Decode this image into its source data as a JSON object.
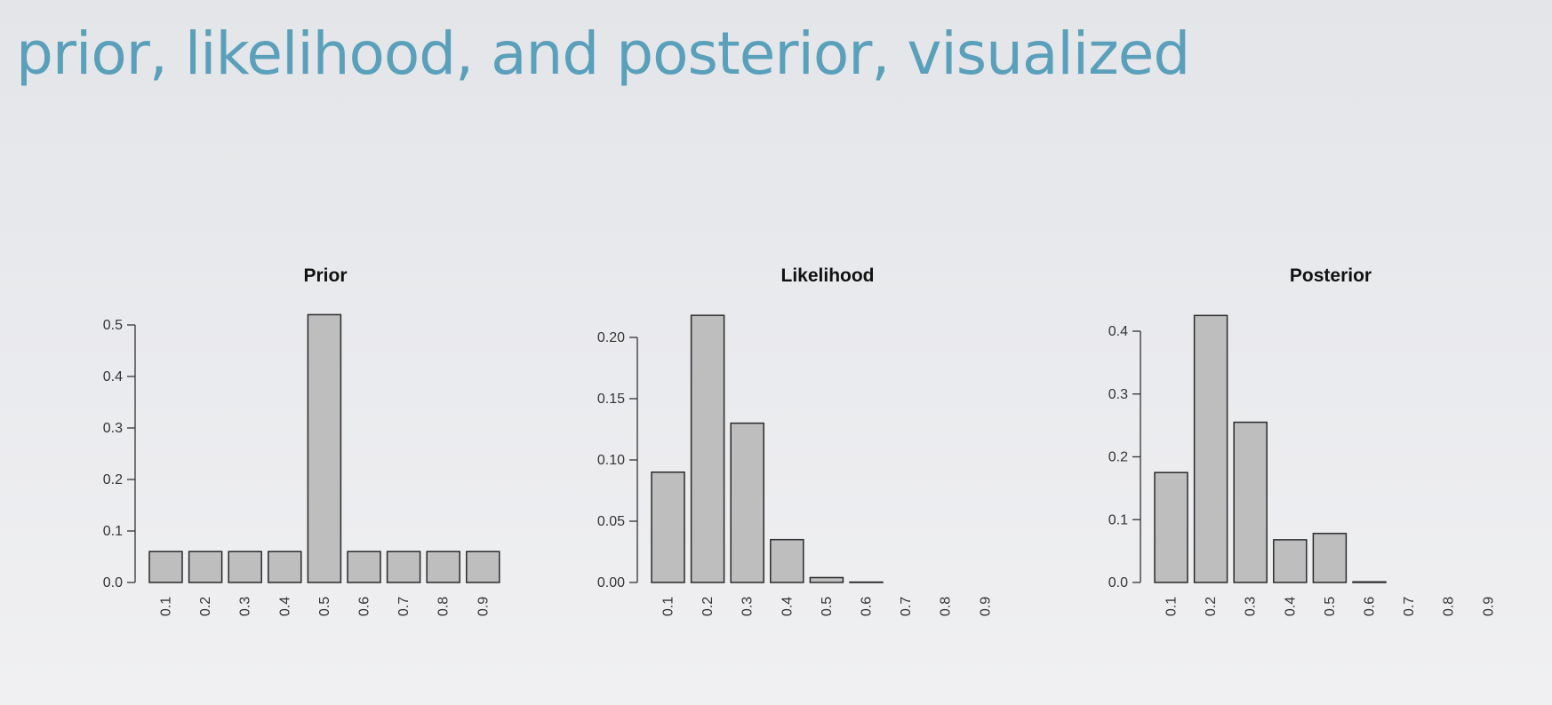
{
  "slide": {
    "title": "prior, likelihood, and posterior, visualized"
  },
  "colors": {
    "title": "#5aa0bb",
    "bar_fill": "#bebebe",
    "bar_stroke": "#2a2a2a"
  },
  "chart_data": [
    {
      "type": "bar",
      "title": "Prior",
      "xlabel": "",
      "ylabel": "",
      "categories": [
        "0.1",
        "0.2",
        "0.3",
        "0.4",
        "0.5",
        "0.6",
        "0.7",
        "0.8",
        "0.9"
      ],
      "values": [
        0.06,
        0.06,
        0.06,
        0.06,
        0.52,
        0.06,
        0.06,
        0.06,
        0.06
      ],
      "yticks": [
        0.0,
        0.1,
        0.2,
        0.3,
        0.4,
        0.5
      ],
      "ytick_labels": [
        "0.0",
        "0.1",
        "0.2",
        "0.3",
        "0.4",
        "0.5"
      ],
      "ylim": [
        0,
        0.5
      ],
      "grid": false
    },
    {
      "type": "bar",
      "title": "Likelihood",
      "xlabel": "",
      "ylabel": "",
      "categories": [
        "0.1",
        "0.2",
        "0.3",
        "0.4",
        "0.5",
        "0.6",
        "0.7",
        "0.8",
        "0.9"
      ],
      "values": [
        0.09,
        0.218,
        0.13,
        0.035,
        0.004,
        0.0003,
        0.0,
        0.0,
        0.0
      ],
      "yticks": [
        0.0,
        0.05,
        0.1,
        0.15,
        0.2
      ],
      "ytick_labels": [
        "0.00",
        "0.05",
        "0.10",
        "0.15",
        "0.20"
      ],
      "ylim": [
        0,
        0.2
      ],
      "grid": false
    },
    {
      "type": "bar",
      "title": "Posterior",
      "xlabel": "",
      "ylabel": "",
      "categories": [
        "0.1",
        "0.2",
        "0.3",
        "0.4",
        "0.5",
        "0.6",
        "0.7",
        "0.8",
        "0.9"
      ],
      "values": [
        0.175,
        0.425,
        0.255,
        0.068,
        0.078,
        0.001,
        0.0,
        0.0,
        0.0
      ],
      "yticks": [
        0.0,
        0.1,
        0.2,
        0.3,
        0.4
      ],
      "ytick_labels": [
        "0.0",
        "0.1",
        "0.2",
        "0.3",
        "0.4"
      ],
      "ylim": [
        0,
        0.4
      ],
      "grid": false
    }
  ]
}
